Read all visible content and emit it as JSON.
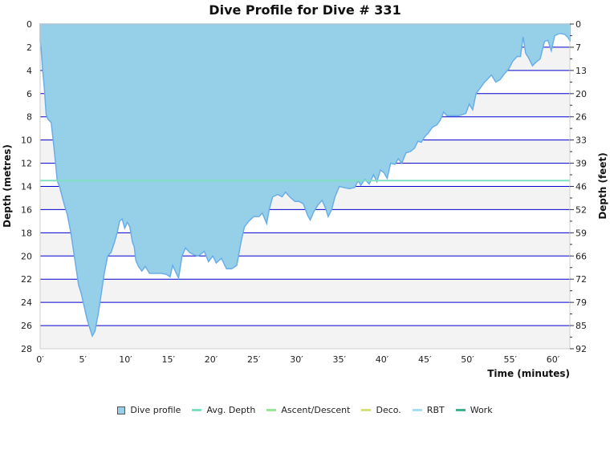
{
  "title": "Dive Profile for Dive # 331",
  "chart_data": {
    "type": "area",
    "title": "Dive Profile for Dive # 331",
    "xlabel": "Time (minutes)",
    "ylabel_left": "Depth (metres)",
    "ylabel_right": "Depth (feet)",
    "xlim": [
      0,
      62
    ],
    "ylim": [
      0,
      28
    ],
    "y_inverted": true,
    "x_ticks": [
      "0′",
      "5′",
      "10′",
      "15′",
      "20′",
      "25′",
      "30′",
      "35′",
      "40′",
      "45′",
      "50′",
      "55′",
      "60′"
    ],
    "x_tick_values": [
      0,
      5,
      10,
      15,
      20,
      25,
      30,
      35,
      40,
      45,
      50,
      55,
      60
    ],
    "y_ticks_left": [
      0,
      2,
      4,
      6,
      8,
      10,
      12,
      14,
      16,
      18,
      20,
      22,
      24,
      26,
      28
    ],
    "y_ticks_right": [
      0,
      7,
      13,
      20,
      26,
      33,
      39,
      46,
      52,
      59,
      66,
      72,
      79,
      85,
      92
    ],
    "grid": true,
    "legend_position": "bottom",
    "avg_depth": 13.5,
    "series": [
      {
        "name": "Dive profile",
        "type": "area",
        "color": "#95cfe8",
        "line_color": "#6aaee8",
        "points": [
          [
            0,
            1.6
          ],
          [
            0.1,
            2.0
          ],
          [
            0.3,
            4.0
          ],
          [
            0.5,
            5.6
          ],
          [
            0.7,
            7.8
          ],
          [
            0.9,
            8.2
          ],
          [
            1.3,
            8.5
          ],
          [
            1.6,
            10.5
          ],
          [
            1.8,
            12.0
          ],
          [
            2.0,
            13.5
          ],
          [
            2.3,
            14.1
          ],
          [
            2.8,
            15.5
          ],
          [
            3.2,
            16.5
          ],
          [
            3.6,
            18.0
          ],
          [
            3.9,
            19.5
          ],
          [
            4.2,
            21.0
          ],
          [
            4.5,
            22.5
          ],
          [
            4.8,
            23.2
          ],
          [
            5.2,
            24.5
          ],
          [
            5.5,
            25.5
          ],
          [
            5.8,
            26.2
          ],
          [
            6.1,
            26.9
          ],
          [
            6.4,
            26.5
          ],
          [
            6.8,
            25.0
          ],
          [
            7.2,
            23.0
          ],
          [
            7.5,
            21.5
          ],
          [
            7.9,
            20.0
          ],
          [
            8.3,
            19.7
          ],
          [
            8.7,
            18.8
          ],
          [
            9.0,
            18.0
          ],
          [
            9.3,
            17.0
          ],
          [
            9.6,
            16.8
          ],
          [
            9.9,
            17.6
          ],
          [
            10.2,
            17.1
          ],
          [
            10.5,
            17.5
          ],
          [
            10.8,
            18.8
          ],
          [
            11.0,
            19.2
          ],
          [
            11.2,
            20.4
          ],
          [
            11.5,
            20.9
          ],
          [
            11.9,
            21.3
          ],
          [
            12.3,
            20.9
          ],
          [
            12.8,
            21.5
          ],
          [
            13.5,
            21.5
          ],
          [
            14.2,
            21.5
          ],
          [
            14.8,
            21.6
          ],
          [
            15.2,
            21.8
          ],
          [
            15.5,
            20.8
          ],
          [
            15.8,
            21.3
          ],
          [
            16.2,
            21.9
          ],
          [
            16.6,
            20.0
          ],
          [
            17.0,
            19.3
          ],
          [
            17.5,
            19.7
          ],
          [
            18.0,
            19.9
          ],
          [
            18.5,
            20.0
          ],
          [
            19.2,
            19.6
          ],
          [
            19.7,
            20.5
          ],
          [
            20.2,
            20.0
          ],
          [
            20.6,
            20.6
          ],
          [
            21.2,
            20.2
          ],
          [
            21.8,
            21.1
          ],
          [
            22.4,
            21.1
          ],
          [
            23.0,
            20.8
          ],
          [
            23.5,
            18.8
          ],
          [
            23.9,
            17.5
          ],
          [
            24.4,
            17.0
          ],
          [
            25.0,
            16.6
          ],
          [
            25.6,
            16.6
          ],
          [
            26.0,
            16.3
          ],
          [
            26.5,
            17.2
          ],
          [
            26.8,
            16.0
          ],
          [
            27.2,
            14.9
          ],
          [
            27.8,
            14.7
          ],
          [
            28.3,
            14.9
          ],
          [
            28.7,
            14.5
          ],
          [
            29.2,
            14.9
          ],
          [
            29.8,
            15.3
          ],
          [
            30.3,
            15.3
          ],
          [
            30.8,
            15.5
          ],
          [
            31.3,
            16.5
          ],
          [
            31.6,
            16.9
          ],
          [
            32.0,
            16.2
          ],
          [
            32.5,
            15.6
          ],
          [
            33.0,
            15.2
          ],
          [
            33.4,
            15.9
          ],
          [
            33.7,
            16.6
          ],
          [
            34.1,
            16.0
          ],
          [
            34.5,
            14.9
          ],
          [
            35.0,
            14.0
          ],
          [
            35.5,
            14.1
          ],
          [
            36.2,
            14.2
          ],
          [
            36.8,
            14.1
          ],
          [
            37.2,
            13.5
          ],
          [
            37.5,
            13.9
          ],
          [
            38.0,
            13.4
          ],
          [
            38.5,
            13.8
          ],
          [
            39.0,
            13.0
          ],
          [
            39.4,
            13.6
          ],
          [
            39.8,
            12.6
          ],
          [
            40.2,
            12.8
          ],
          [
            40.6,
            13.3
          ],
          [
            41.0,
            12.0
          ],
          [
            41.5,
            12.1
          ],
          [
            41.9,
            11.6
          ],
          [
            42.3,
            12.0
          ],
          [
            42.8,
            11.1
          ],
          [
            43.3,
            11.0
          ],
          [
            43.8,
            10.7
          ],
          [
            44.2,
            10.1
          ],
          [
            44.6,
            10.2
          ],
          [
            45.0,
            9.7
          ],
          [
            45.4,
            9.4
          ],
          [
            45.9,
            8.9
          ],
          [
            46.4,
            8.7
          ],
          [
            46.8,
            8.3
          ],
          [
            47.2,
            7.6
          ],
          [
            47.6,
            7.9
          ],
          [
            48.3,
            7.9
          ],
          [
            49.0,
            7.9
          ],
          [
            49.8,
            7.7
          ],
          [
            50.2,
            6.9
          ],
          [
            50.6,
            7.4
          ],
          [
            51.0,
            6.0
          ],
          [
            51.5,
            5.5
          ],
          [
            52.0,
            5.0
          ],
          [
            52.4,
            4.7
          ],
          [
            52.8,
            4.4
          ],
          [
            53.3,
            5.0
          ],
          [
            53.8,
            4.8
          ],
          [
            54.3,
            4.3
          ],
          [
            54.8,
            3.9
          ],
          [
            55.3,
            3.2
          ],
          [
            55.8,
            2.8
          ],
          [
            56.2,
            2.8
          ],
          [
            56.5,
            1.1
          ],
          [
            56.8,
            2.5
          ],
          [
            57.2,
            3.0
          ],
          [
            57.6,
            3.6
          ],
          [
            58.0,
            3.3
          ],
          [
            58.5,
            3.0
          ],
          [
            59.0,
            1.5
          ],
          [
            59.4,
            1.4
          ],
          [
            59.8,
            2.3
          ],
          [
            60.2,
            1.0
          ],
          [
            60.8,
            0.8
          ],
          [
            61.4,
            0.9
          ],
          [
            61.8,
            1.2
          ],
          [
            62.0,
            1.5
          ]
        ]
      },
      {
        "name": "Avg. Depth",
        "type": "line",
        "color": "#7ee0c0"
      },
      {
        "name": "Ascent/Descent",
        "type": "line",
        "color": "#99e699"
      },
      {
        "name": "Deco.",
        "type": "line",
        "color": "#d4e07a"
      },
      {
        "name": "RBT",
        "type": "line",
        "color": "#a8dcf0"
      },
      {
        "name": "Work",
        "type": "line",
        "color": "#3cb38c"
      }
    ]
  },
  "legend": [
    {
      "label": "Dive profile",
      "kind": "box",
      "color": "#95cfe8"
    },
    {
      "label": "Avg. Depth",
      "kind": "line",
      "color": "#7ee0c0"
    },
    {
      "label": "Ascent/Descent",
      "kind": "line",
      "color": "#99e699"
    },
    {
      "label": "Deco.",
      "kind": "line",
      "color": "#d4e07a"
    },
    {
      "label": "RBT",
      "kind": "line",
      "color": "#a8dcf0"
    },
    {
      "label": "Work",
      "kind": "line",
      "color": "#3cb38c"
    }
  ],
  "colors": {
    "grid_line": "#0000cc",
    "band_alt": "#f3f3f3",
    "axis": "#cccccc"
  }
}
